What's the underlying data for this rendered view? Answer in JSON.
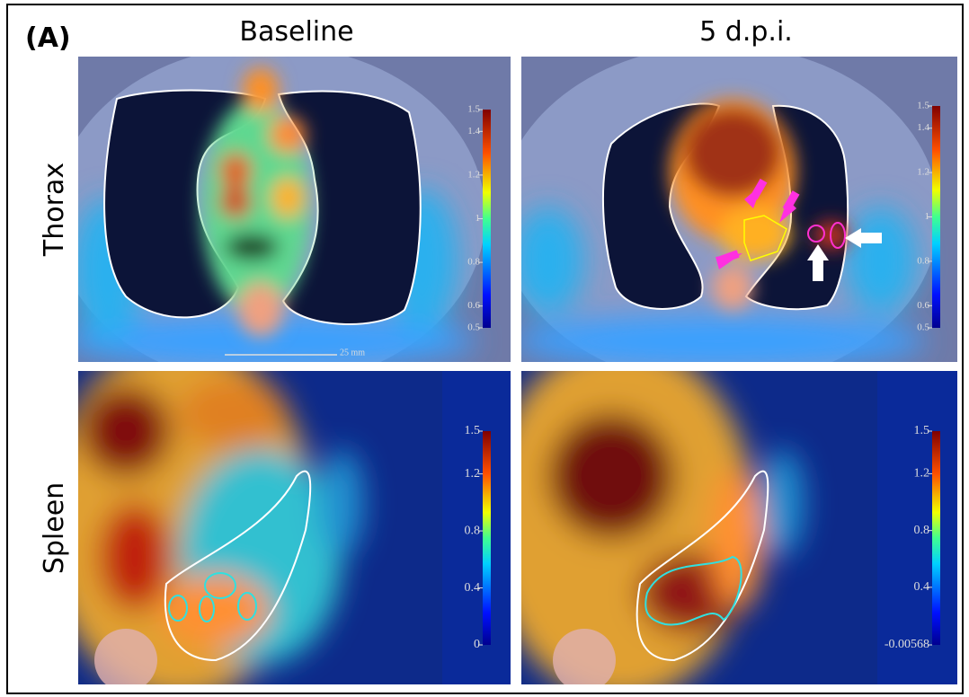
{
  "label": "(A)",
  "columns": [
    "Baseline",
    "5 d.p.i."
  ],
  "rows": [
    "Thorax",
    "Spleen"
  ],
  "panels": [
    {
      "colorbar_ticks": [
        1.5,
        1.4,
        1.2,
        1,
        0.8,
        0.6,
        0.5
      ],
      "scale_bar": "25 mm"
    },
    {
      "colorbar_ticks": [
        1.5,
        1.4,
        1.2,
        1,
        0.8,
        0.6,
        0.5
      ]
    },
    {
      "colorbar_ticks": [
        1.5,
        1.2,
        0.8,
        0.4,
        0
      ]
    },
    {
      "colorbar_ticks": [
        1.5,
        1.2,
        0.8,
        0.4,
        -0.00568
      ]
    }
  ]
}
